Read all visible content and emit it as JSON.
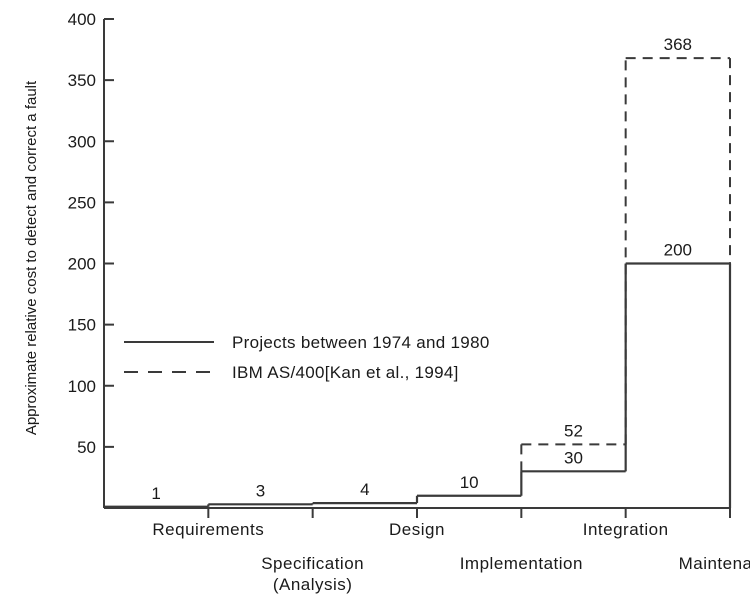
{
  "chart_data": {
    "type": "line",
    "ylabel": "Approximate relative cost to detect and correct a fault",
    "ylim": [
      0,
      400
    ],
    "yticks": [
      50,
      100,
      150,
      200,
      250,
      300,
      350,
      400
    ],
    "phases": [
      "Requirements",
      "Specification (Analysis)",
      "Design",
      "Implementation",
      "Integration",
      "Maintenance"
    ],
    "phase_labels": [
      {
        "lines": [
          "Requirements"
        ]
      },
      {
        "lines": [
          "Specification",
          "(Analysis)"
        ]
      },
      {
        "lines": [
          "Design"
        ]
      },
      {
        "lines": [
          "Implementation"
        ]
      },
      {
        "lines": [
          "Integration"
        ]
      },
      {
        "lines": [
          "Maintenance"
        ]
      }
    ],
    "series": [
      {
        "name": "Projects between 1974 and 1980",
        "style": "solid",
        "values": [
          1,
          3,
          4,
          10,
          30,
          200
        ],
        "labels": [
          "1",
          "3",
          "4",
          "10",
          "30",
          "200"
        ]
      },
      {
        "name": "IBM AS/400[Kan et al., 1994]",
        "style": "dashed",
        "values": [
          null,
          null,
          null,
          null,
          52,
          368
        ],
        "labels": [
          "",
          "",
          "",
          "",
          "52",
          "368"
        ]
      }
    ],
    "legend": "center-left",
    "grid": false,
    "line_color": "#3a3a3a"
  }
}
